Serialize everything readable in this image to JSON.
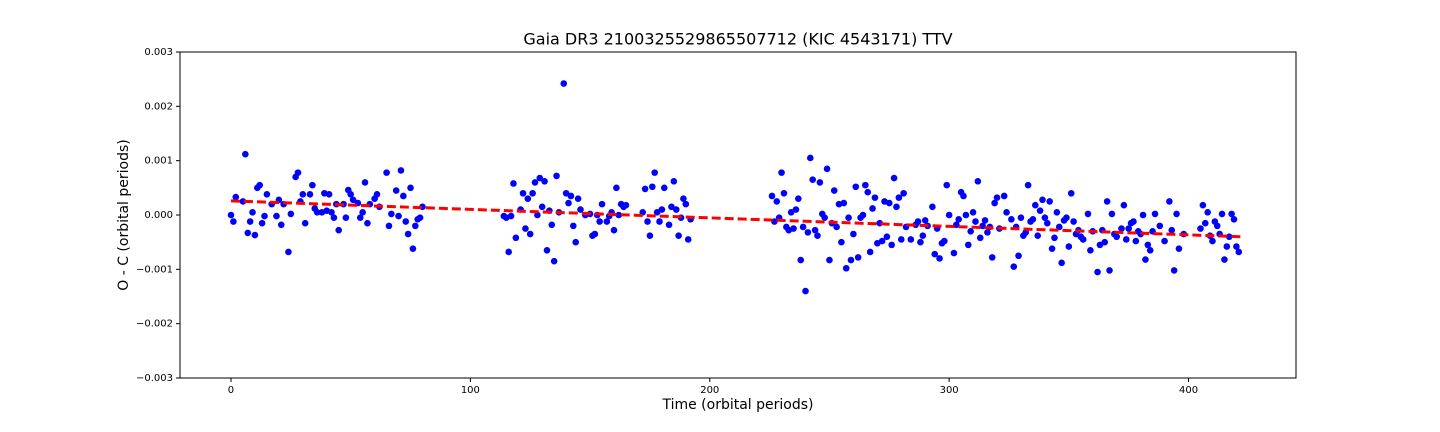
{
  "chart_data": {
    "type": "scatter",
    "title": "Gaia DR3 2100325529865507712 (KIC 4543171) TTV",
    "x_label": "Time (orbital periods)",
    "y_label": "O - C (orbital periods)",
    "xlim": [
      -21.3,
      444.9
    ],
    "ylim": [
      -0.003,
      0.003
    ],
    "xticks": [
      0,
      100,
      200,
      300,
      400
    ],
    "yticks": [
      {
        "value": -0.003,
        "label": "−0.003"
      },
      {
        "value": -0.002,
        "label": "−0.002"
      },
      {
        "value": -0.001,
        "label": "−0.001"
      },
      {
        "value": 0,
        "label": "0.000"
      },
      0.001,
      0.002,
      0.003
    ],
    "series": [
      {
        "type": "scatter",
        "color": "#0000ff",
        "x": [
          0,
          1,
          2,
          5,
          6,
          7,
          8,
          9,
          10,
          11,
          12,
          13,
          14,
          15,
          17,
          19,
          20,
          21,
          22,
          24,
          25,
          27,
          28,
          29,
          30,
          31,
          33,
          34,
          35,
          36,
          38,
          39,
          40,
          41,
          42,
          43,
          44,
          45,
          47,
          48,
          49,
          50,
          51,
          53,
          54,
          55,
          56,
          57,
          58,
          60,
          61,
          62,
          65,
          66,
          67,
          69,
          70,
          71,
          72,
          73,
          74,
          75,
          76,
          77,
          78,
          79,
          80,
          114,
          115,
          116,
          117,
          118,
          119,
          121,
          122,
          123,
          124,
          125,
          126,
          127,
          128,
          129,
          130,
          131,
          132,
          133,
          134,
          135,
          136,
          137,
          139,
          140,
          141,
          142,
          143,
          144,
          145,
          146,
          148,
          150,
          151,
          152,
          153,
          154,
          155,
          157,
          158,
          159,
          160,
          161,
          162,
          163,
          164,
          165,
          172,
          173,
          174,
          175,
          176,
          177,
          178,
          179,
          180,
          181,
          183,
          184,
          185,
          186,
          187,
          188,
          189,
          190,
          191,
          192,
          226,
          227,
          228,
          229,
          230,
          231,
          232,
          233,
          234,
          235,
          236,
          237,
          238,
          239,
          240,
          241,
          242,
          243,
          244,
          245,
          246,
          247,
          248,
          249,
          250,
          251,
          252,
          253,
          254,
          255,
          256,
          257,
          258,
          259,
          260,
          261,
          262,
          263,
          264,
          265,
          266,
          267,
          268,
          269,
          270,
          271,
          272,
          273,
          274,
          275,
          276,
          277,
          278,
          279,
          280,
          281,
          282,
          284,
          286,
          287,
          288,
          289,
          290,
          291,
          293,
          294,
          295,
          296,
          297,
          298,
          299,
          300,
          302,
          303,
          304,
          305,
          306,
          307,
          308,
          309,
          310,
          311,
          312,
          313,
          314,
          315,
          316,
          317,
          318,
          319,
          320,
          321,
          323,
          324,
          326,
          327,
          328,
          329,
          330,
          331,
          332,
          333,
          334,
          335,
          336,
          337,
          338,
          339,
          340,
          341,
          342,
          343,
          344,
          345,
          346,
          347,
          348,
          349,
          350,
          351,
          352,
          353,
          354,
          355,
          356,
          358,
          359,
          360,
          362,
          363,
          364,
          365,
          366,
          367,
          368,
          369,
          370,
          372,
          373,
          374,
          375,
          376,
          377,
          378,
          379,
          380,
          381,
          382,
          383,
          384,
          385,
          386,
          388,
          390,
          392,
          393,
          394,
          395,
          396,
          398,
          405,
          406,
          407,
          408,
          409,
          410,
          411,
          412,
          413,
          414,
          415,
          416,
          417,
          418,
          419,
          420,
          421
        ],
        "values": [
          0,
          -0.00012,
          0.00033,
          0.00025,
          0.00112,
          -0.00033,
          -0.00012,
          5e-05,
          -0.00037,
          0.0005,
          0.00055,
          -0.00015,
          -2e-05,
          0.00038,
          0.0002,
          -2e-05,
          0.00028,
          -0.00018,
          0.0002,
          -0.00068,
          2e-05,
          0.0007,
          0.00078,
          0.00025,
          0.00038,
          -0.00015,
          0.00038,
          0.00055,
          0.00012,
          5e-05,
          5e-05,
          0.0004,
          8e-05,
          0.00038,
          5e-05,
          -5e-05,
          0.0002,
          -0.00028,
          0.0002,
          -5e-05,
          0.00046,
          0.00038,
          0.00028,
          0.00022,
          -5e-05,
          5e-05,
          0.0006,
          -0.00015,
          0.0002,
          0.0003,
          0.00038,
          0.00015,
          0.00078,
          -0.0002,
          2e-05,
          0.00045,
          -2e-05,
          0.00082,
          0.00035,
          -0.00012,
          -0.00035,
          0.0005,
          -0.00062,
          -0.0002,
          -8e-05,
          -5e-05,
          0.00015,
          -2e-05,
          -5e-05,
          -0.00068,
          -2e-05,
          0.00058,
          -0.00042,
          0.0001,
          0.0004,
          -0.00025,
          0.0003,
          -0.00035,
          0.0004,
          0.0006,
          0,
          0.00068,
          0.00015,
          0.00062,
          -0.00065,
          8e-05,
          -0.00018,
          -0.00085,
          0.00072,
          5e-05,
          0.00242,
          0.0004,
          0.00022,
          0.00035,
          -0.0002,
          -0.0005,
          0.0003,
          0.0001,
          0,
          2e-05,
          -0.00038,
          -0.00035,
          0,
          -0.00012,
          0.0002,
          -0.00012,
          -2e-05,
          5e-05,
          -0.00028,
          0.0005,
          0,
          0.0002,
          0.00015,
          0.00018,
          5e-05,
          0.00048,
          -0.00012,
          -0.00038,
          0.00052,
          0.00078,
          5e-05,
          -0.00012,
          0.0001,
          0.0005,
          -0.00018,
          0.00015,
          0.00062,
          0.0001,
          -0.00038,
          -5e-05,
          0.0003,
          0.0002,
          -0.00045,
          -8e-05,
          0.00035,
          -0.00012,
          0.00025,
          -5e-05,
          0.00078,
          0.0004,
          -0.00022,
          -0.00028,
          5e-05,
          -0.00025,
          0.0001,
          0.0003,
          -0.00083,
          -0.00022,
          -0.0014,
          -0.00032,
          0.00105,
          0.00065,
          -0.00028,
          -0.00038,
          0.0006,
          2e-05,
          -5e-05,
          0.00085,
          -0.00083,
          -0.00015,
          0.00045,
          -0.00022,
          0.0002,
          -0.0005,
          0.00022,
          -0.00098,
          -5e-05,
          -0.00083,
          -0.00035,
          0.00052,
          -0.00078,
          -5e-05,
          0,
          0.00055,
          0.00042,
          -0.00068,
          0.00012,
          0.00032,
          -0.00052,
          -0.00015,
          -0.00048,
          0.00025,
          -0.0004,
          0.00022,
          -0.00055,
          0.00068,
          0.00015,
          0.00032,
          -0.00045,
          0.0004,
          -0.00022,
          -0.00045,
          -0.00018,
          -0.00012,
          -0.0005,
          -0.00038,
          -0.0001,
          -0.0002,
          0.00015,
          -0.00072,
          -0.00025,
          -0.0008,
          -0.00052,
          -0.00048,
          0.00055,
          0,
          -0.0007,
          -0.00018,
          -8e-05,
          0.00042,
          0.00035,
          0,
          -0.00055,
          -0.0003,
          5e-05,
          -0.00012,
          0.00062,
          -0.00042,
          -0.0002,
          -0.0001,
          -0.00032,
          -0.00022,
          -0.00078,
          0.00022,
          0.00032,
          -0.00025,
          0.00035,
          5e-05,
          -8e-05,
          -0.00095,
          -0.00022,
          -0.00075,
          -5e-05,
          -0.00038,
          -0.00032,
          0.00055,
          -0.00012,
          -8e-05,
          0.00018,
          -0.00038,
          8e-05,
          0.00028,
          -5e-05,
          -0.00015,
          0.00025,
          -0.00062,
          -0.00042,
          5e-05,
          -0.00022,
          -0.00088,
          -0.0001,
          -5e-05,
          -0.00058,
          0.0004,
          -0.00012,
          -0.00035,
          -0.00028,
          -0.0004,
          -0.00045,
          2e-05,
          -0.00065,
          -0.0003,
          -0.00105,
          -0.00055,
          -0.00028,
          -0.0005,
          0.00025,
          -0.00102,
          2e-05,
          -0.00035,
          -0.0004,
          -0.00025,
          0.00018,
          -0.00045,
          -0.00025,
          -0.00015,
          -0.00012,
          -0.00048,
          -0.0003,
          -0.00035,
          0,
          -0.00082,
          -0.00055,
          -0.00065,
          -0.0003,
          2e-05,
          -0.0002,
          -0.00048,
          0.00025,
          -0.00028,
          -0.00102,
          2e-05,
          -0.00062,
          -0.00035,
          -0.00025,
          0.00018,
          -0.00015,
          5e-05,
          -0.00038,
          -0.00048,
          -0.00012,
          -0.0002,
          -0.00035,
          2e-05,
          -0.00082,
          -0.00058,
          -0.0004,
          2e-05,
          -8e-05,
          -0.00058,
          -0.00068
        ]
      },
      {
        "type": "line",
        "color": "#ff0000",
        "dashed": true,
        "x": [
          0,
          422
        ],
        "values": [
          0.00026,
          -0.0004
        ]
      }
    ]
  }
}
